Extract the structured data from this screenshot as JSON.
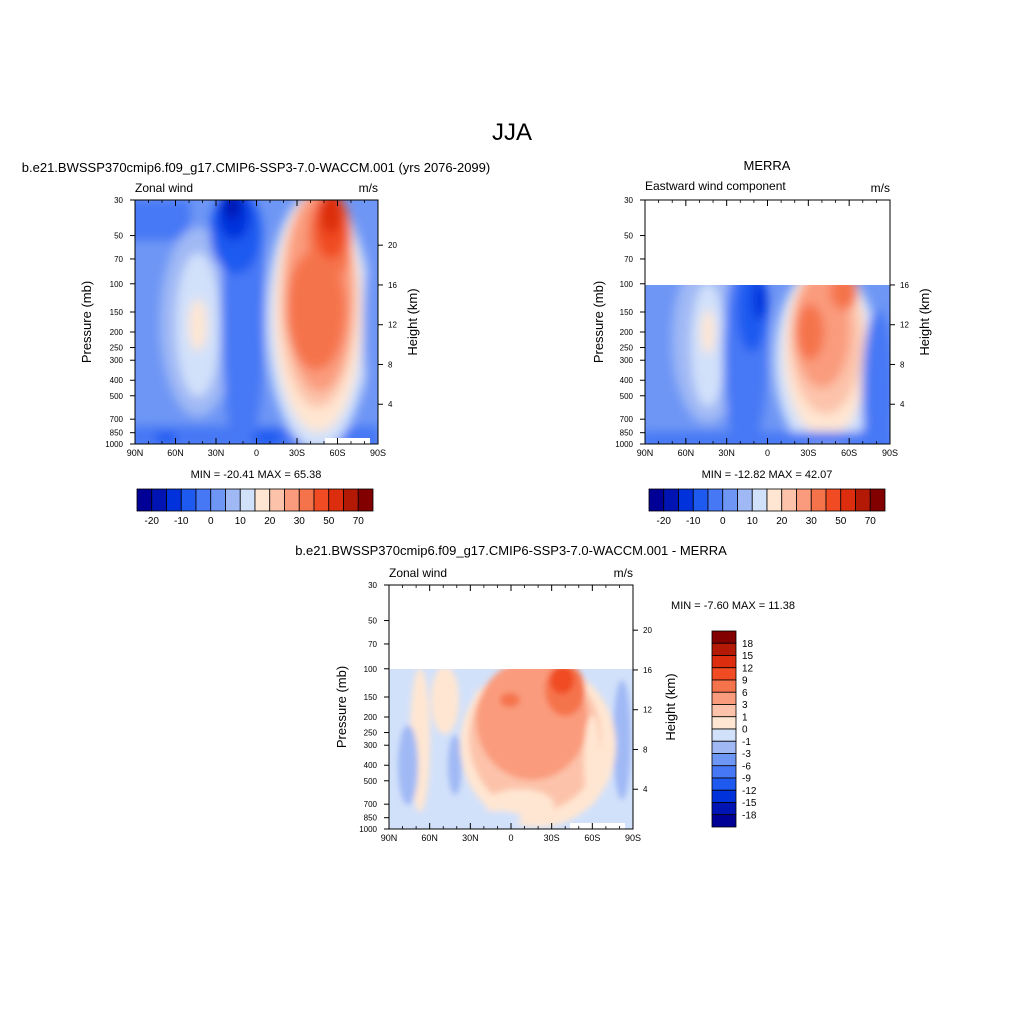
{
  "page": {
    "title": "JJA"
  },
  "panel_left": {
    "title": "b.e21.BWSSP370cmip6.f09_g17.CMIP6-SSP3-7.0-WACCM.001 (yrs 2076-2099)",
    "left_label": "Zonal wind",
    "right_label": "m/s",
    "y_label": "Pressure (mb)",
    "y2_label": "Height (km)",
    "stats": "MIN = -20.41  MAX =  65.38"
  },
  "panel_right": {
    "title": "MERRA",
    "left_label": "Eastward wind component",
    "right_label": "m/s",
    "y_label": "Pressure (mb)",
    "y2_label": "Height (km)",
    "stats": "MIN = -12.82  MAX =  42.07"
  },
  "panel_diff": {
    "title": "b.e21.BWSSP370cmip6.f09_g17.CMIP6-SSP3-7.0-WACCM.001 - MERRA",
    "left_label": "Zonal wind",
    "right_label": "m/s",
    "y_label": "Pressure (mb)",
    "y2_label": "Height (km)",
    "stats": "MIN =  -7.60  MAX =  11.38"
  },
  "axes": {
    "x_ticks": [
      "90N",
      "60N",
      "30N",
      "0",
      "30S",
      "60S",
      "90S"
    ],
    "pressure_ticks": [
      {
        "label": "30",
        "p": 30
      },
      {
        "label": "50",
        "p": 50
      },
      {
        "label": "70",
        "p": 70
      },
      {
        "label": "100",
        "p": 100
      },
      {
        "label": "150",
        "p": 150
      },
      {
        "label": "200",
        "p": 200
      },
      {
        "label": "250",
        "p": 250
      },
      {
        "label": "300",
        "p": 300
      },
      {
        "label": "400",
        "p": 400
      },
      {
        "label": "500",
        "p": 500
      },
      {
        "label": "700",
        "p": 700
      },
      {
        "label": "850",
        "p": 850
      },
      {
        "label": "1000",
        "p": 1000
      }
    ],
    "height_ticks_top": [
      {
        "label": "20",
        "km": 20
      },
      {
        "label": "16",
        "km": 16
      },
      {
        "label": "12",
        "km": 12
      },
      {
        "label": "8",
        "km": 8
      },
      {
        "label": "4",
        "km": 4
      }
    ],
    "height_ticks_clipped": [
      {
        "label": "16",
        "km": 16
      },
      {
        "label": "12",
        "km": 12
      },
      {
        "label": "8",
        "km": 8
      },
      {
        "label": "4",
        "km": 4
      }
    ],
    "height_ticks_diff": [
      {
        "label": "20",
        "km": 20
      },
      {
        "label": "16",
        "km": 16
      },
      {
        "label": "12",
        "km": 12
      },
      {
        "label": "8",
        "km": 8
      },
      {
        "label": "4",
        "km": 4
      }
    ]
  },
  "colorbar_main": {
    "colors": [
      "#000096",
      "#0014b4",
      "#0032dc",
      "#1e5af0",
      "#4678f5",
      "#6e96f5",
      "#a0b9f5",
      "#d2e1fa",
      "#ffe6d2",
      "#fcc3aa",
      "#fa9b7d",
      "#f5734b",
      "#f04b23",
      "#dc2d0f",
      "#b41905",
      "#820000"
    ],
    "labels": [
      "-20",
      "-10",
      "0",
      "10",
      "20",
      "30",
      "50",
      "70"
    ]
  },
  "colorbar_diff": {
    "colors": [
      "#820000",
      "#b41905",
      "#dc2d0f",
      "#f04b23",
      "#f5734b",
      "#fa9b7d",
      "#fcc3aa",
      "#ffe6d2",
      "#d2e1fa",
      "#a0b9f5",
      "#6e96f5",
      "#4678f5",
      "#1e5af0",
      "#0032dc",
      "#0014b4",
      "#000096"
    ],
    "labels": [
      "18",
      "15",
      "12",
      "9",
      "6",
      "3",
      "1",
      "0",
      "-1",
      "-3",
      "-6",
      "-9",
      "-12",
      "-15",
      "-18"
    ]
  },
  "chart_data": [
    {
      "type": "heatmap",
      "title": "b.e21.BWSSP370cmip6.f09_g17.CMIP6-SSP3-7.0-WACCM.001 (yrs 2076-2099)",
      "variable": "Zonal wind",
      "units": "m/s",
      "xlabel": "",
      "ylabel": "Pressure (mb)",
      "y2label": "Height (km)",
      "x_range": [
        "90N",
        "90S"
      ],
      "y_range_mb": [
        30,
        1000
      ],
      "min": -20.41,
      "max": 65.38,
      "levels": [
        -20,
        -15,
        -10,
        -5,
        0,
        5,
        10,
        15,
        20,
        25,
        30,
        40,
        50,
        60,
        70
      ],
      "features": [
        {
          "kind": "westerly_jet",
          "lat": -45,
          "p_mb": 30,
          "value": 65
        },
        {
          "kind": "westerly_jet",
          "lat": -40,
          "p_mb": 200,
          "value": 35
        },
        {
          "kind": "easterly_min",
          "lat": 20,
          "p_mb": 30,
          "value": -20
        },
        {
          "kind": "westerly_max",
          "lat": 45,
          "p_mb": 200,
          "value": 20
        }
      ]
    },
    {
      "type": "heatmap",
      "title": "MERRA",
      "variable": "Eastward wind component",
      "units": "m/s",
      "xlabel": "",
      "ylabel": "Pressure (mb)",
      "y2label": "Height (km)",
      "x_range": [
        "90N",
        "90S"
      ],
      "y_range_mb": [
        30,
        1000
      ],
      "data_top_mb": 100,
      "min": -12.82,
      "max": 42.07,
      "levels": [
        -20,
        -15,
        -10,
        -5,
        0,
        5,
        10,
        15,
        20,
        25,
        30,
        40,
        50,
        60,
        70
      ],
      "features": [
        {
          "kind": "westerly_jet",
          "lat": -35,
          "p_mb": 200,
          "value": 40
        },
        {
          "kind": "easterly_min",
          "lat": 5,
          "p_mb": 100,
          "value": -12
        },
        {
          "kind": "westerly_max",
          "lat": 45,
          "p_mb": 200,
          "value": 20
        }
      ]
    },
    {
      "type": "heatmap",
      "title": "b.e21.BWSSP370cmip6.f09_g17.CMIP6-SSP3-7.0-WACCM.001 - MERRA",
      "variable": "Zonal wind",
      "units": "m/s",
      "xlabel": "",
      "ylabel": "Pressure (mb)",
      "y2label": "Height (km)",
      "x_range": [
        "90N",
        "90S"
      ],
      "y_range_mb": [
        30,
        1000
      ],
      "data_top_mb": 100,
      "min": -7.6,
      "max": 11.38,
      "levels": [
        -18,
        -15,
        -12,
        -9,
        -6,
        -3,
        -1,
        0,
        1,
        3,
        6,
        9,
        12,
        15,
        18
      ],
      "features": [
        {
          "kind": "positive_max",
          "lat": -25,
          "p_mb": 100,
          "value": 11
        },
        {
          "kind": "negative_min",
          "lat": 80,
          "p_mb": 400,
          "value": -7
        }
      ]
    }
  ]
}
